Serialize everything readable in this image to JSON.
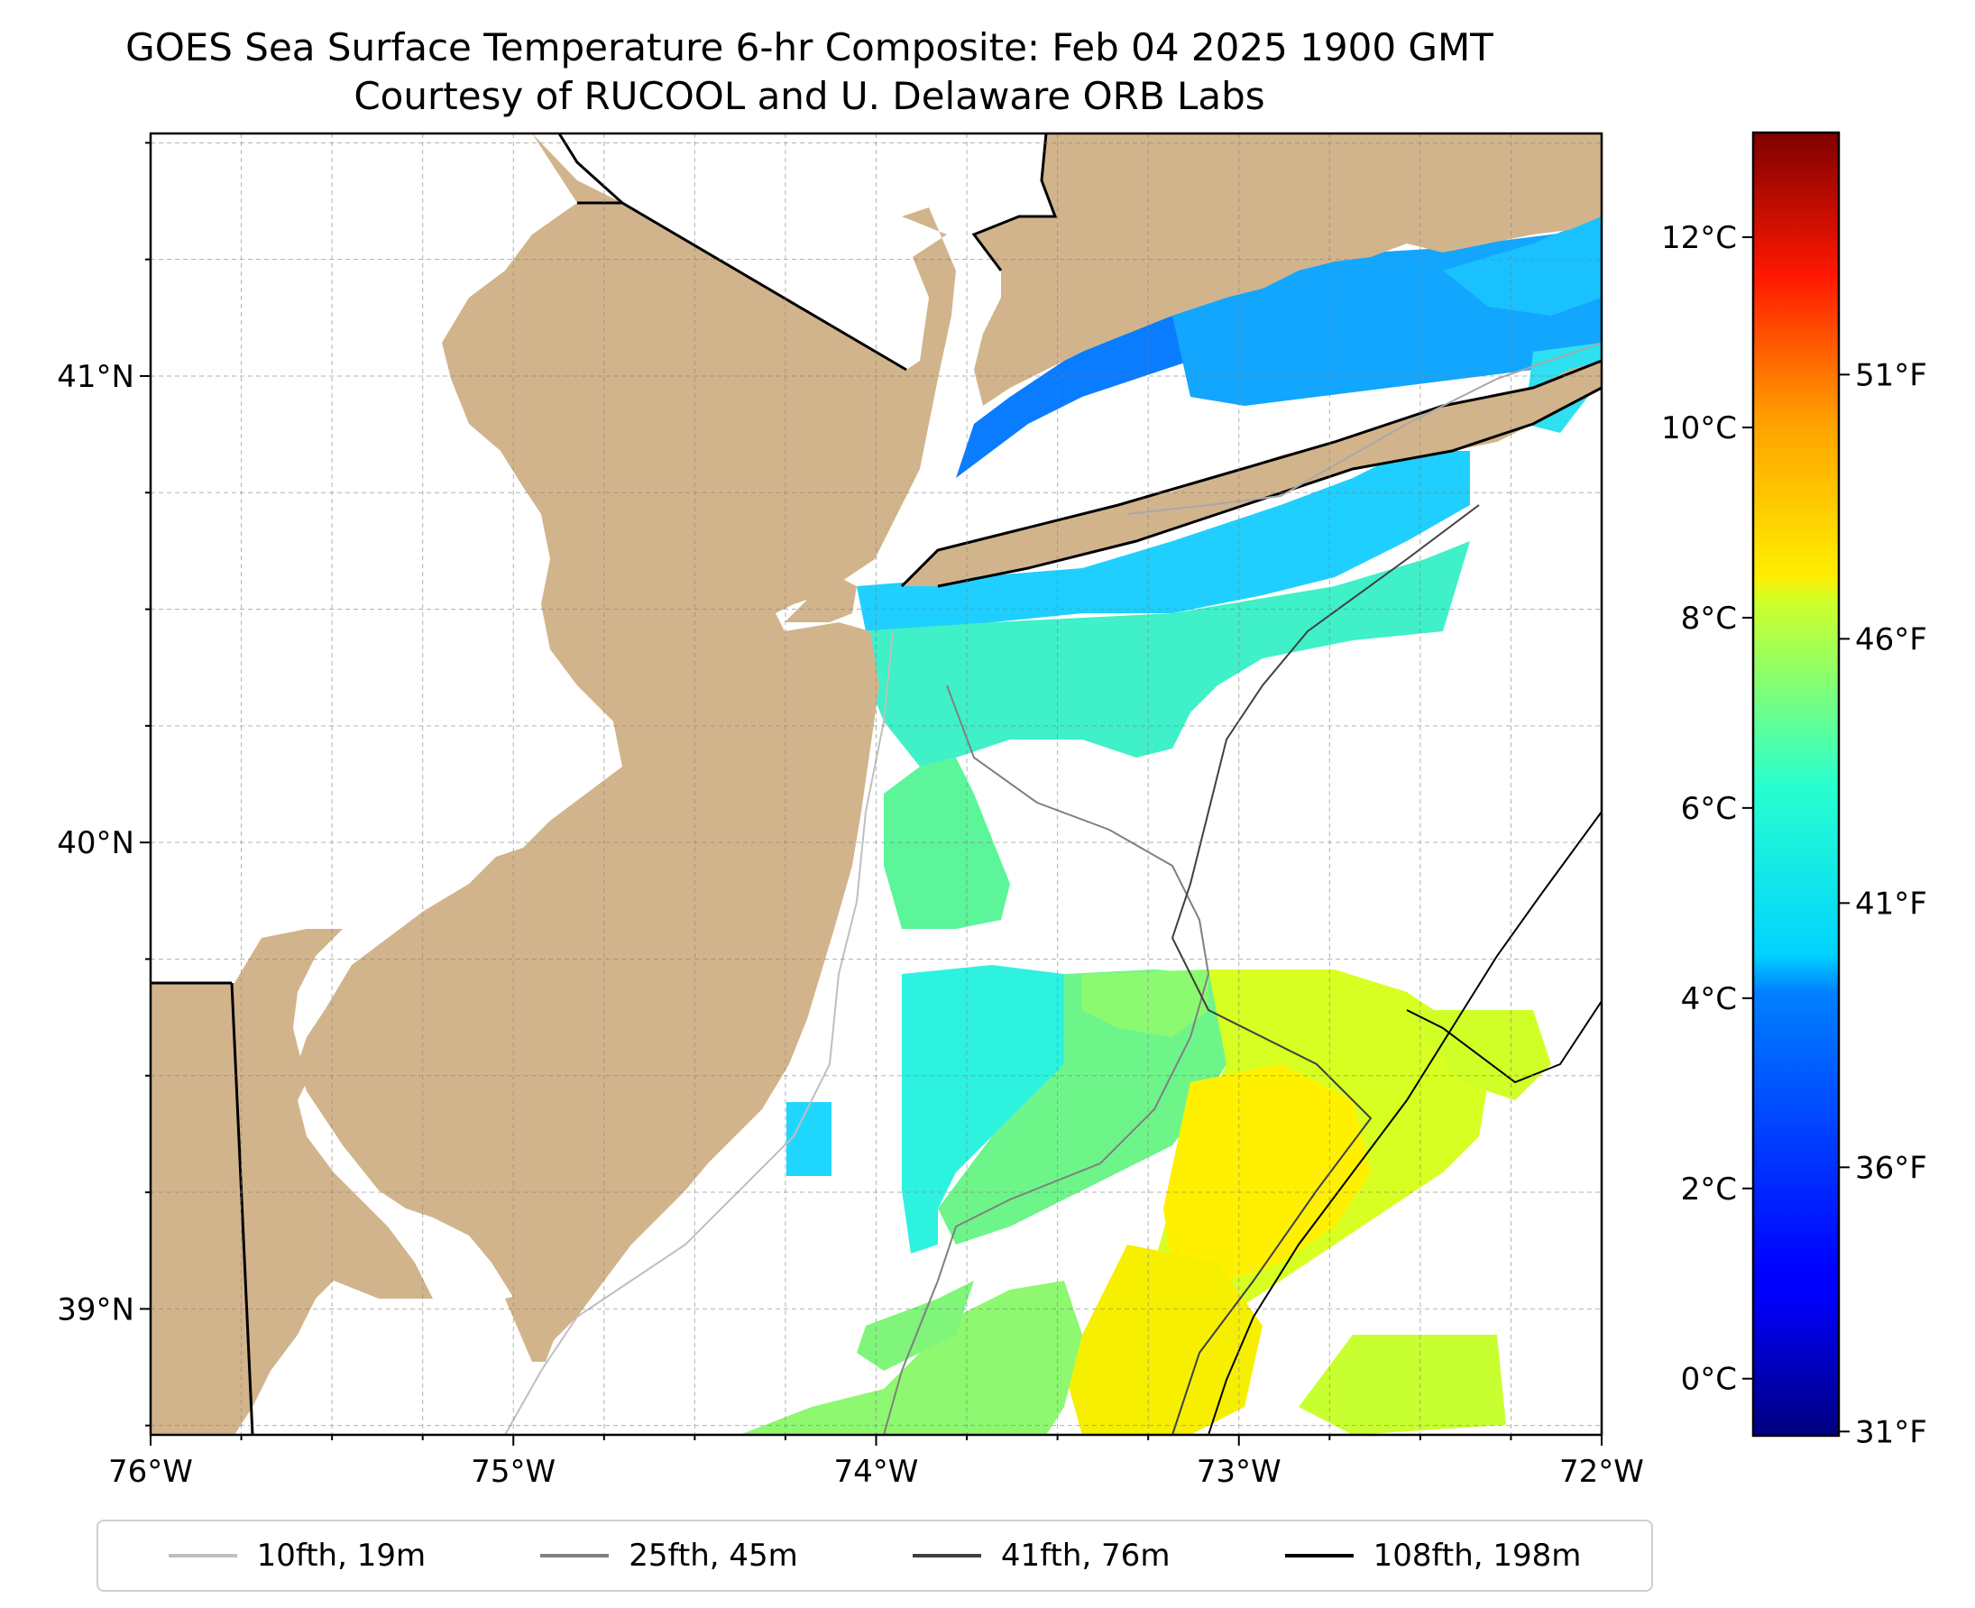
{
  "title": {
    "line1": "GOES Sea Surface Temperature 6-hr Composite: Feb 04 2025 1900 GMT",
    "line2": "Courtesy of RUCOOL and U. Delaware ORB Labs"
  },
  "map": {
    "lon_range": [
      -76.0,
      -72.0
    ],
    "lat_range": [
      38.73,
      41.52
    ],
    "x_ticks": [
      {
        "lon": -76,
        "label": "76°W"
      },
      {
        "lon": -75,
        "label": "75°W"
      },
      {
        "lon": -74,
        "label": "74°W"
      },
      {
        "lon": -73,
        "label": "73°W"
      },
      {
        "lon": -72,
        "label": "72°W"
      }
    ],
    "y_ticks": [
      {
        "lat": 39,
        "label": "39°N"
      },
      {
        "lat": 40,
        "label": "40°N"
      },
      {
        "lat": 41,
        "label": "41°N"
      }
    ],
    "gridlines": true,
    "land_color": "#d2b48c",
    "no_data_color": "#ffffff"
  },
  "colorbar": {
    "colormap": "jet",
    "range_c": [
      -0.6,
      13.1
    ],
    "celsius_ticks": [
      {
        "value": 0,
        "label": "0°C"
      },
      {
        "value": 2,
        "label": "2°C"
      },
      {
        "value": 4,
        "label": "4°C"
      },
      {
        "value": 6,
        "label": "6°C"
      },
      {
        "value": 8,
        "label": "8°C"
      },
      {
        "value": 10,
        "label": "10°C"
      },
      {
        "value": 12,
        "label": "12°C"
      }
    ],
    "fahrenheit_ticks": [
      {
        "value": 31,
        "label": "31°F"
      },
      {
        "value": 36,
        "label": "36°F"
      },
      {
        "value": 41,
        "label": "41°F"
      },
      {
        "value": 46,
        "label": "46°F"
      },
      {
        "value": 51,
        "label": "51°F"
      }
    ]
  },
  "legend": [
    {
      "label": "10fth, 19m",
      "color": "#bfbfbf"
    },
    {
      "label": "25fth, 45m",
      "color": "#808080"
    },
    {
      "label": "41fth, 76m",
      "color": "#404040"
    },
    {
      "label": "108fth, 198m",
      "color": "#000000"
    }
  ]
}
